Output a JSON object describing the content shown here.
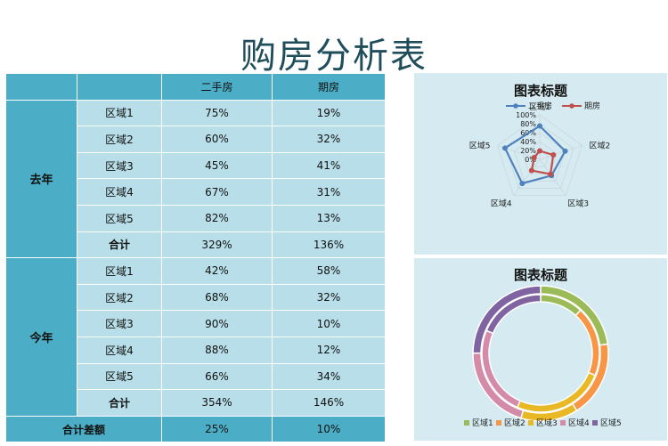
{
  "page_title": "购房分析表",
  "table": {
    "headers": [
      "",
      "",
      "二手房",
      "期房"
    ],
    "groups": [
      {
        "label": "去年",
        "rows": [
          {
            "region": "区域1",
            "second_hand": "75%",
            "future": "19%"
          },
          {
            "region": "区域2",
            "second_hand": "60%",
            "future": "32%"
          },
          {
            "region": "区域3",
            "second_hand": "45%",
            "future": "41%"
          },
          {
            "region": "区域4",
            "second_hand": "67%",
            "future": "31%"
          },
          {
            "region": "区域5",
            "second_hand": "82%",
            "future": "13%"
          }
        ],
        "subtotal": {
          "label": "合计",
          "second_hand": "329%",
          "future": "136%"
        }
      },
      {
        "label": "今年",
        "rows": [
          {
            "region": "区域1",
            "second_hand": "42%",
            "future": "58%"
          },
          {
            "region": "区域2",
            "second_hand": "68%",
            "future": "32%"
          },
          {
            "region": "区域3",
            "second_hand": "90%",
            "future": "10%"
          },
          {
            "region": "区域4",
            "second_hand": "88%",
            "future": "12%"
          },
          {
            "region": "区域5",
            "second_hand": "66%",
            "future": "34%"
          }
        ],
        "subtotal": {
          "label": "合计",
          "second_hand": "354%",
          "future": "146%"
        }
      }
    ],
    "total": {
      "label": "合计差额",
      "second_hand": "25%",
      "future": "10%"
    }
  },
  "chart_data": [
    {
      "type": "radar",
      "title": "图表标题",
      "categories": [
        "区域1",
        "区域2",
        "区域3",
        "区域4",
        "区域5"
      ],
      "axis_ticks": [
        "0%",
        "20%",
        "40%",
        "60%",
        "80%",
        "100%"
      ],
      "range": [
        0,
        100
      ],
      "legend_position": "top",
      "series": [
        {
          "name": "二手房",
          "values": [
            75,
            60,
            45,
            67,
            82
          ],
          "color": "#4f81bd"
        },
        {
          "name": "期房",
          "values": [
            19,
            32,
            41,
            31,
            13
          ],
          "color": "#c0504d"
        }
      ]
    },
    {
      "type": "doughnut",
      "title": "图表标题",
      "categories": [
        "区域1",
        "区域2",
        "区域3",
        "区域4",
        "区域5"
      ],
      "colors": [
        "#9bbb59",
        "#f79646",
        "#e8b825",
        "#d48ba8",
        "#8064a2"
      ],
      "legend_position": "bottom",
      "rings": [
        {
          "values": [
            42,
            68,
            90,
            88,
            66
          ]
        },
        {
          "values": [
            75,
            60,
            45,
            67,
            82
          ]
        }
      ]
    }
  ]
}
